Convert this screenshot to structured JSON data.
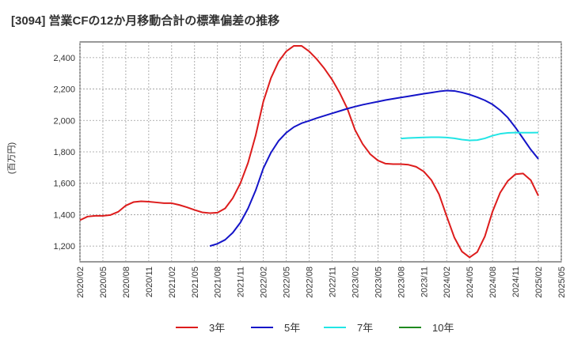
{
  "chart_data": {
    "type": "line",
    "title": "[3094]  営業CFの12か月移動合計の標準偏差の推移",
    "ylabel": "(百万円)",
    "xlabel": "",
    "ylim": [
      1100,
      2500
    ],
    "yticks": [
      1200,
      1400,
      1600,
      1800,
      2000,
      2200,
      2400
    ],
    "ytick_labels": [
      "1,200",
      "1,400",
      "1,600",
      "1,800",
      "2,000",
      "2,200",
      "2,400"
    ],
    "xticks": [
      "2020/02",
      "2020/05",
      "2020/08",
      "2020/11",
      "2021/02",
      "2021/05",
      "2021/08",
      "2021/11",
      "2022/02",
      "2022/05",
      "2022/08",
      "2022/11",
      "2023/02",
      "2023/05",
      "2023/08",
      "2023/11",
      "2024/02",
      "2024/05",
      "2024/08",
      "2024/11",
      "2025/02",
      "2025/05"
    ],
    "grid": true,
    "legend_position": "bottom",
    "series": [
      {
        "name": "3年",
        "color": "#dd1c1c",
        "points": [
          [
            "2020/02",
            1365
          ],
          [
            "2020/03",
            1388
          ],
          [
            "2020/04",
            1393
          ],
          [
            "2020/05",
            1393
          ],
          [
            "2020/06",
            1398
          ],
          [
            "2020/07",
            1418
          ],
          [
            "2020/08",
            1458
          ],
          [
            "2020/09",
            1480
          ],
          [
            "2020/10",
            1485
          ],
          [
            "2020/11",
            1483
          ],
          [
            "2020/12",
            1478
          ],
          [
            "2021/01",
            1473
          ],
          [
            "2021/02",
            1473
          ],
          [
            "2021/03",
            1462
          ],
          [
            "2021/04",
            1447
          ],
          [
            "2021/05",
            1430
          ],
          [
            "2021/06",
            1415
          ],
          [
            "2021/07",
            1410
          ],
          [
            "2021/08",
            1413
          ],
          [
            "2021/09",
            1440
          ],
          [
            "2021/10",
            1505
          ],
          [
            "2021/11",
            1600
          ],
          [
            "2021/12",
            1730
          ],
          [
            "2022/01",
            1905
          ],
          [
            "2022/02",
            2120
          ],
          [
            "2022/03",
            2270
          ],
          [
            "2022/04",
            2375
          ],
          [
            "2022/05",
            2440
          ],
          [
            "2022/06",
            2475
          ],
          [
            "2022/07",
            2475
          ],
          [
            "2022/08",
            2440
          ],
          [
            "2022/09",
            2390
          ],
          [
            "2022/10",
            2330
          ],
          [
            "2022/11",
            2260
          ],
          [
            "2022/12",
            2175
          ],
          [
            "2023/01",
            2075
          ],
          [
            "2023/02",
            1940
          ],
          [
            "2023/03",
            1850
          ],
          [
            "2023/04",
            1785
          ],
          [
            "2023/05",
            1745
          ],
          [
            "2023/06",
            1725
          ],
          [
            "2023/07",
            1722
          ],
          [
            "2023/08",
            1722
          ],
          [
            "2023/09",
            1718
          ],
          [
            "2023/10",
            1705
          ],
          [
            "2023/11",
            1675
          ],
          [
            "2023/12",
            1620
          ],
          [
            "2024/01",
            1530
          ],
          [
            "2024/02",
            1390
          ],
          [
            "2024/03",
            1255
          ],
          [
            "2024/04",
            1165
          ],
          [
            "2024/05",
            1128
          ],
          [
            "2024/06",
            1162
          ],
          [
            "2024/07",
            1262
          ],
          [
            "2024/08",
            1420
          ],
          [
            "2024/09",
            1540
          ],
          [
            "2024/10",
            1615
          ],
          [
            "2024/11",
            1658
          ],
          [
            "2024/12",
            1662
          ],
          [
            "2025/01",
            1620
          ],
          [
            "2025/02",
            1520
          ]
        ]
      },
      {
        "name": "5年",
        "color": "#1414c8",
        "points": [
          [
            "2021/07",
            1200
          ],
          [
            "2021/08",
            1215
          ],
          [
            "2021/09",
            1240
          ],
          [
            "2021/10",
            1285
          ],
          [
            "2021/11",
            1350
          ],
          [
            "2021/12",
            1440
          ],
          [
            "2022/01",
            1555
          ],
          [
            "2022/02",
            1695
          ],
          [
            "2022/03",
            1795
          ],
          [
            "2022/04",
            1870
          ],
          [
            "2022/05",
            1922
          ],
          [
            "2022/06",
            1958
          ],
          [
            "2022/07",
            1982
          ],
          [
            "2022/08",
            1998
          ],
          [
            "2022/09",
            2015
          ],
          [
            "2022/10",
            2030
          ],
          [
            "2022/11",
            2045
          ],
          [
            "2022/12",
            2060
          ],
          [
            "2023/01",
            2075
          ],
          [
            "2023/02",
            2088
          ],
          [
            "2023/03",
            2100
          ],
          [
            "2023/04",
            2110
          ],
          [
            "2023/05",
            2120
          ],
          [
            "2023/06",
            2130
          ],
          [
            "2023/07",
            2138
          ],
          [
            "2023/08",
            2146
          ],
          [
            "2023/09",
            2154
          ],
          [
            "2023/10",
            2162
          ],
          [
            "2023/11",
            2170
          ],
          [
            "2023/12",
            2177
          ],
          [
            "2024/01",
            2185
          ],
          [
            "2024/02",
            2190
          ],
          [
            "2024/03",
            2188
          ],
          [
            "2024/04",
            2178
          ],
          [
            "2024/05",
            2165
          ],
          [
            "2024/06",
            2148
          ],
          [
            "2024/07",
            2128
          ],
          [
            "2024/08",
            2102
          ],
          [
            "2024/09",
            2065
          ],
          [
            "2024/10",
            2018
          ],
          [
            "2024/11",
            1955
          ],
          [
            "2024/12",
            1885
          ],
          [
            "2025/01",
            1815
          ],
          [
            "2025/02",
            1755
          ]
        ]
      },
      {
        "name": "7年",
        "color": "#22e5e5",
        "points": [
          [
            "2023/08",
            1885
          ],
          [
            "2023/09",
            1888
          ],
          [
            "2023/10",
            1890
          ],
          [
            "2023/11",
            1892
          ],
          [
            "2023/12",
            1893
          ],
          [
            "2024/01",
            1893
          ],
          [
            "2024/02",
            1891
          ],
          [
            "2024/03",
            1886
          ],
          [
            "2024/04",
            1878
          ],
          [
            "2024/05",
            1873
          ],
          [
            "2024/06",
            1875
          ],
          [
            "2024/07",
            1886
          ],
          [
            "2024/08",
            1903
          ],
          [
            "2024/09",
            1915
          ],
          [
            "2024/10",
            1921
          ],
          [
            "2024/11",
            1923
          ],
          [
            "2024/12",
            1922
          ],
          [
            "2025/01",
            1922
          ],
          [
            "2025/02",
            1923
          ]
        ]
      },
      {
        "name": "10年",
        "color": "#1f8a1f",
        "points": []
      }
    ]
  }
}
